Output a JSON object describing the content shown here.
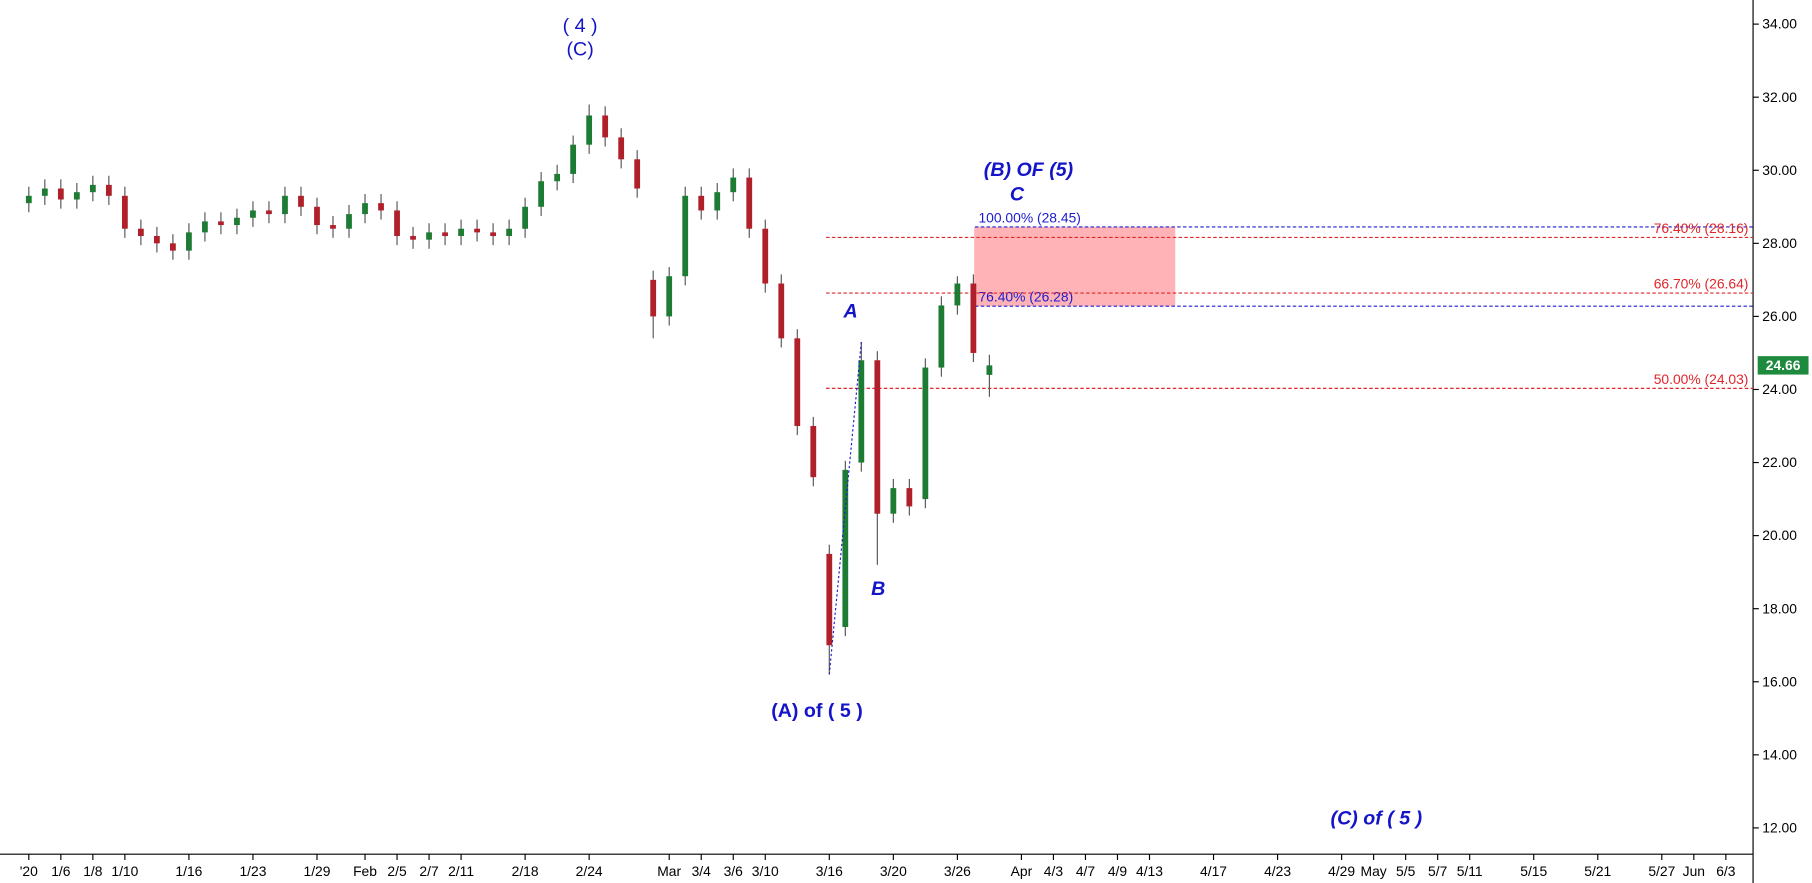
{
  "chart_data": {
    "type": "candlestick",
    "xticks": [
      {
        "value": 0,
        "label": "'20"
      },
      {
        "value": 2,
        "label": "1/6"
      },
      {
        "value": 4,
        "label": "1/8"
      },
      {
        "value": 6,
        "label": "1/10"
      },
      {
        "value": 10,
        "label": "1/16"
      },
      {
        "value": 14,
        "label": "1/23"
      },
      {
        "value": 18,
        "label": "1/29"
      },
      {
        "value": 21,
        "label": "Feb"
      },
      {
        "value": 23,
        "label": "2/5"
      },
      {
        "value": 25,
        "label": "2/7"
      },
      {
        "value": 27,
        "label": "2/11"
      },
      {
        "value": 31,
        "label": "2/18"
      },
      {
        "value": 35,
        "label": "2/24"
      },
      {
        "value": 40,
        "label": "Mar"
      },
      {
        "value": 42,
        "label": "3/4"
      },
      {
        "value": 44,
        "label": "3/6"
      },
      {
        "value": 46,
        "label": "3/10"
      },
      {
        "value": 50,
        "label": "3/16"
      },
      {
        "value": 54,
        "label": "3/20"
      },
      {
        "value": 58,
        "label": "3/26"
      },
      {
        "value": 62,
        "label": "Apr"
      },
      {
        "value": 64,
        "label": "4/3"
      },
      {
        "value": 66,
        "label": "4/7"
      },
      {
        "value": 68,
        "label": "4/9"
      },
      {
        "value": 70,
        "label": "4/13"
      },
      {
        "value": 74,
        "label": "4/17"
      },
      {
        "value": 78,
        "label": "4/23"
      },
      {
        "value": 82,
        "label": "4/29"
      },
      {
        "value": 84,
        "label": "May"
      },
      {
        "value": 86,
        "label": "5/5"
      },
      {
        "value": 88,
        "label": "5/7"
      },
      {
        "value": 90,
        "label": "5/11"
      },
      {
        "value": 94,
        "label": "5/15"
      },
      {
        "value": 98,
        "label": "5/21"
      },
      {
        "value": 102,
        "label": "5/27"
      },
      {
        "value": 104,
        "label": "Jun"
      },
      {
        "value": 106,
        "label": "6/3"
      }
    ],
    "xlim": [
      -1.8,
      107.7
    ],
    "ylim": [
      11.28,
      34.66
    ],
    "yticks": [
      {
        "value": 12,
        "label": "12.00"
      },
      {
        "value": 14,
        "label": "14.00"
      },
      {
        "value": 16,
        "label": "16.00"
      },
      {
        "value": 18,
        "label": "18.00"
      },
      {
        "value": 20,
        "label": "20.00"
      },
      {
        "value": 22,
        "label": "22.00"
      },
      {
        "value": 24,
        "label": "24.00"
      },
      {
        "value": 26,
        "label": "26.00"
      },
      {
        "value": 28,
        "label": "28.00"
      },
      {
        "value": 30,
        "label": "30.00"
      },
      {
        "value": 32,
        "label": "32.00"
      },
      {
        "value": 34,
        "label": "34.00"
      }
    ],
    "up_color": "#1e7b34",
    "down_color": "#b0202a",
    "candles": {
      "x": [
        0,
        1,
        2,
        3,
        4,
        5,
        6,
        7,
        8,
        9,
        10,
        11,
        12,
        13,
        14,
        15,
        16,
        17,
        18,
        19,
        20,
        21,
        22,
        23,
        24,
        25,
        26,
        27,
        28,
        29,
        30,
        31,
        32,
        33,
        34,
        35,
        36,
        37,
        38,
        39,
        40,
        41,
        42,
        43,
        44,
        45,
        46,
        47,
        48,
        49,
        50,
        51,
        52,
        53,
        54,
        55,
        56,
        57,
        58,
        59,
        60
      ],
      "open": [
        29.1,
        29.3,
        29.5,
        29.2,
        29.4,
        29.6,
        29.3,
        28.4,
        28.2,
        28.0,
        27.8,
        28.3,
        28.6,
        28.5,
        28.7,
        28.9,
        28.8,
        29.3,
        29.0,
        28.5,
        28.4,
        28.8,
        29.1,
        28.9,
        28.2,
        28.1,
        28.3,
        28.2,
        28.4,
        28.3,
        28.2,
        28.4,
        29.0,
        29.7,
        29.9,
        30.7,
        31.5,
        30.9,
        30.3,
        27.0,
        26.0,
        27.1,
        29.3,
        28.9,
        29.4,
        29.8,
        28.4,
        26.9,
        25.4,
        23.0,
        19.5,
        17.5,
        22.0,
        24.8,
        20.6,
        21.3,
        21.0,
        24.6,
        26.3,
        26.9,
        24.4
      ],
      "high": [
        29.55,
        29.75,
        29.75,
        29.65,
        29.85,
        29.85,
        29.55,
        28.65,
        28.45,
        28.25,
        28.55,
        28.85,
        28.85,
        28.95,
        29.15,
        29.15,
        29.55,
        29.55,
        29.25,
        28.75,
        29.05,
        29.35,
        29.35,
        29.15,
        28.45,
        28.55,
        28.55,
        28.65,
        28.65,
        28.55,
        28.65,
        29.25,
        29.95,
        30.15,
        30.95,
        31.8,
        31.75,
        31.15,
        30.55,
        27.25,
        27.35,
        29.55,
        29.55,
        29.65,
        30.05,
        30.05,
        28.65,
        27.15,
        25.65,
        23.25,
        19.75,
        22.05,
        25.3,
        25.05,
        21.55,
        21.55,
        24.85,
        26.55,
        27.1,
        27.15,
        24.95
      ],
      "low": [
        28.85,
        29.05,
        28.95,
        28.95,
        29.15,
        29.05,
        28.15,
        27.95,
        27.75,
        27.55,
        27.55,
        28.05,
        28.25,
        28.25,
        28.45,
        28.55,
        28.55,
        28.75,
        28.25,
        28.15,
        28.15,
        28.55,
        28.65,
        27.95,
        27.85,
        27.85,
        27.95,
        27.95,
        28.05,
        27.95,
        27.95,
        28.15,
        28.75,
        29.45,
        29.65,
        30.45,
        30.65,
        30.05,
        29.25,
        25.4,
        25.75,
        26.85,
        28.65,
        28.65,
        29.15,
        28.15,
        26.65,
        25.15,
        22.75,
        21.35,
        16.2,
        17.25,
        21.75,
        19.2,
        20.35,
        20.55,
        20.75,
        24.35,
        26.05,
        24.75,
        23.8
      ],
      "close": [
        29.3,
        29.5,
        29.2,
        29.4,
        29.6,
        29.3,
        28.4,
        28.2,
        28.0,
        27.8,
        28.3,
        28.6,
        28.5,
        28.7,
        28.9,
        28.8,
        29.3,
        29.0,
        28.5,
        28.4,
        28.8,
        29.1,
        28.9,
        28.2,
        28.1,
        28.3,
        28.2,
        28.4,
        28.3,
        28.2,
        28.4,
        29.0,
        29.7,
        29.9,
        30.7,
        31.5,
        30.9,
        30.3,
        29.5,
        26.0,
        27.1,
        29.3,
        28.9,
        29.4,
        29.8,
        28.4,
        26.9,
        25.4,
        23.0,
        21.6,
        17.0,
        21.8,
        24.8,
        20.6,
        21.3,
        20.8,
        24.6,
        26.3,
        26.9,
        25.0,
        24.66
      ]
    },
    "levels": [
      {
        "label": "100.00% (28.45)",
        "value": 28.45,
        "color": "#1c1cd0",
        "from_x": 59.1
      },
      {
        "label": "76.40% (26.28)",
        "value": 26.28,
        "color": "#1c1cd0",
        "from_x": 59.1
      },
      {
        "label": "76.40% (28.16)",
        "value": 28.16,
        "color": "#e0262b",
        "from_x": 49.8
      },
      {
        "label": "66.70% (26.64)",
        "value": 26.64,
        "color": "#e0262b",
        "from_x": 49.8
      },
      {
        "label": "50.00% (24.03)",
        "value": 24.03,
        "color": "#e0262b",
        "from_x": 49.8
      }
    ],
    "last_price": 24.66,
    "annotations": {
      "wave4": "( 4 )",
      "wave4c": "(C)",
      "b_of_5": "(B) OF (5)",
      "c": "C",
      "a": "A",
      "b": "B",
      "a_of_5": "(A) of ( 5 )",
      "c_of_5": "(C) of ( 5 )"
    }
  }
}
